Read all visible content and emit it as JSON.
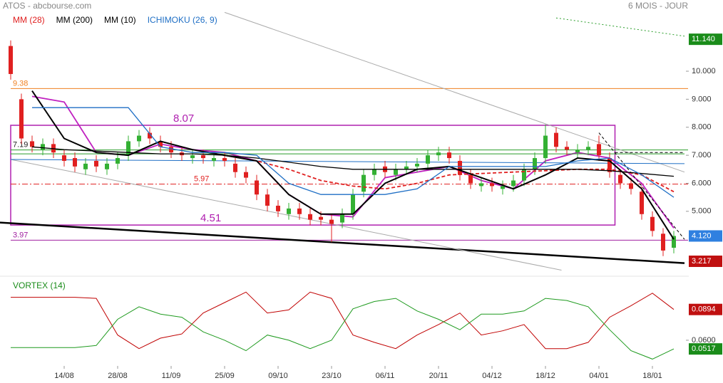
{
  "chart_data": [
    {
      "type": "candlestick",
      "title": "ATOS - abcbourse.com",
      "subtitle": "6 MOIS - JOUR",
      "x": [
        0,
        2,
        4,
        6,
        8,
        10,
        12,
        14,
        16,
        18,
        20,
        22,
        24,
        26,
        28,
        30,
        32,
        34,
        36,
        38,
        40,
        42,
        44,
        46,
        48,
        50,
        52,
        54,
        56,
        58,
        60,
        62,
        64,
        66,
        68,
        70,
        72,
        74,
        76,
        78,
        80,
        82,
        84,
        86,
        88,
        90,
        92,
        94,
        96,
        98,
        100,
        102,
        104,
        106,
        108,
        110,
        112,
        114,
        116,
        118,
        120,
        122,
        124
      ],
      "open": [
        10.9,
        9.0,
        7.5,
        7.2,
        7.4,
        7.0,
        6.9,
        6.5,
        6.8,
        6.5,
        6.7,
        7.0,
        7.5,
        7.8,
        7.5,
        7.3,
        7.1,
        6.9,
        7.0,
        6.8,
        6.9,
        6.7,
        6.4,
        6.1,
        5.6,
        5.2,
        4.9,
        5.1,
        4.9,
        4.8,
        4.7,
        4.6,
        4.9,
        5.7,
        6.3,
        6.6,
        6.3,
        6.5,
        6.6,
        6.7,
        7.0,
        7.1,
        6.8,
        6.3,
        5.9,
        6.0,
        5.8,
        5.9,
        6.1,
        6.5,
        6.9,
        7.8,
        7.3,
        7.1,
        7.2,
        7.4,
        6.9,
        6.3,
        6.0,
        5.7,
        4.8,
        4.2,
        3.7
      ],
      "high": [
        11.1,
        9.2,
        7.7,
        7.6,
        7.6,
        7.2,
        7.1,
        6.9,
        7.0,
        6.9,
        7.1,
        7.7,
        7.9,
        8.0,
        7.7,
        7.5,
        7.3,
        7.2,
        7.2,
        7.1,
        7.1,
        6.9,
        6.6,
        6.3,
        5.8,
        5.4,
        5.3,
        5.3,
        5.1,
        5.0,
        4.9,
        5.1,
        5.8,
        6.5,
        6.7,
        6.8,
        6.7,
        6.8,
        6.9,
        7.2,
        7.3,
        7.3,
        7.0,
        6.5,
        6.2,
        6.2,
        6.1,
        6.3,
        6.7,
        7.1,
        8.1,
        8.0,
        7.5,
        7.4,
        7.5,
        7.7,
        7.1,
        6.5,
        6.2,
        5.9,
        5.0,
        4.4,
        4.3
      ],
      "low": [
        9.7,
        7.4,
        7.1,
        7.0,
        6.9,
        6.6,
        6.4,
        6.3,
        6.4,
        6.3,
        6.5,
        6.8,
        7.3,
        7.4,
        7.1,
        6.9,
        6.8,
        6.7,
        6.7,
        6.6,
        6.6,
        6.2,
        6.0,
        5.4,
        5.0,
        4.8,
        4.7,
        4.7,
        4.5,
        4.5,
        3.9,
        4.4,
        4.7,
        5.5,
        6.1,
        6.2,
        6.1,
        6.3,
        6.4,
        6.5,
        6.8,
        6.7,
        6.1,
        5.8,
        5.7,
        5.7,
        5.6,
        5.7,
        5.9,
        6.3,
        6.7,
        7.1,
        7.0,
        6.9,
        7.0,
        6.8,
        6.2,
        5.8,
        5.6,
        4.7,
        4.1,
        3.4,
        3.5
      ],
      "close": [
        9.9,
        7.6,
        7.3,
        7.4,
        7.1,
        6.8,
        6.6,
        6.7,
        6.6,
        6.7,
        6.9,
        7.5,
        7.7,
        7.6,
        7.3,
        7.1,
        7.0,
        7.0,
        6.9,
        6.9,
        6.8,
        6.4,
        6.2,
        5.6,
        5.2,
        5.0,
        5.1,
        4.9,
        4.7,
        4.7,
        4.55,
        4.9,
        5.6,
        6.3,
        6.5,
        6.4,
        6.5,
        6.6,
        6.7,
        7.0,
        7.1,
        6.9,
        6.3,
        6.0,
        6.0,
        5.9,
        5.9,
        6.1,
        6.5,
        6.9,
        7.7,
        7.3,
        7.2,
        7.2,
        7.3,
        7.0,
        6.4,
        6.0,
        5.8,
        4.9,
        4.3,
        3.6,
        4.12
      ],
      "up_color": "#33b033",
      "down_color": "#e02020",
      "xlim": [
        0,
        126
      ],
      "xticks": [
        {
          "value": 10,
          "label": "14/08"
        },
        {
          "value": 20,
          "label": "28/08"
        },
        {
          "value": 30,
          "label": "11/09"
        },
        {
          "value": 40,
          "label": "25/09"
        },
        {
          "value": 50,
          "label": "09/10"
        },
        {
          "value": 60,
          "label": "23/10"
        },
        {
          "value": 70,
          "label": "06/11"
        },
        {
          "value": 80,
          "label": "20/11"
        },
        {
          "value": 90,
          "label": "04/12"
        },
        {
          "value": 100,
          "label": "18/12"
        },
        {
          "value": 110,
          "label": "04/01"
        },
        {
          "value": 120,
          "label": "18/01"
        }
      ],
      "ylim": [
        2.76,
        12.16
      ],
      "yticks": [
        {
          "value": 5,
          "label": "5.000"
        },
        {
          "value": 6,
          "label": "6.000"
        },
        {
          "value": 7,
          "label": "7.000"
        },
        {
          "value": 8,
          "label": "8.000"
        },
        {
          "value": 9,
          "label": "9.000"
        },
        {
          "value": 10,
          "label": "10.000"
        }
      ],
      "series": [
        {
          "name": "MM (28)",
          "color": "#e02020",
          "dash": true,
          "x": [
            4,
            10,
            16,
            22,
            28,
            34,
            40,
            46,
            52,
            58,
            64,
            70,
            76,
            82,
            88,
            94,
            100,
            106,
            112,
            118,
            124
          ],
          "values": [
            null,
            null,
            null,
            null,
            null,
            null,
            7.0,
            6.8,
            6.5,
            6.1,
            5.9,
            5.8,
            6.0,
            6.3,
            6.35,
            6.4,
            6.45,
            6.5,
            6.5,
            6.3,
            5.7
          ]
        },
        {
          "name": "MM (200)",
          "color": "#000000",
          "dash": false,
          "x": [
            4,
            10,
            16,
            22,
            28,
            34,
            40,
            46,
            52,
            58,
            64,
            70,
            76,
            82,
            88,
            94,
            100,
            106,
            112,
            118,
            124
          ],
          "values": [
            7.3,
            7.2,
            7.15,
            7.1,
            7.05,
            7.05,
            7.0,
            6.9,
            6.75,
            6.6,
            6.5,
            6.5,
            6.5,
            6.5,
            6.5,
            6.5,
            6.5,
            6.5,
            6.45,
            6.35,
            6.25
          ]
        },
        {
          "name": "MM (10)",
          "color": "#000000",
          "dash": false,
          "x": [
            4,
            10,
            16,
            22,
            28,
            34,
            40,
            46,
            52,
            58,
            64,
            70,
            76,
            82,
            88,
            94,
            100,
            106,
            112,
            118,
            124
          ],
          "values": [
            9.3,
            7.6,
            7.1,
            7.0,
            7.5,
            7.2,
            7.0,
            6.8,
            5.6,
            4.9,
            4.9,
            6.0,
            6.5,
            6.6,
            6.2,
            5.8,
            6.3,
            6.9,
            6.8,
            5.8,
            4.0
          ]
        },
        {
          "name": "ICHIMOKU (26, 9)",
          "color": "#1f6fc5",
          "dash": false,
          "x": [
            4,
            10,
            16,
            22,
            28,
            34,
            40,
            46,
            52,
            58,
            64,
            70,
            76,
            82,
            88,
            94,
            100,
            106,
            112,
            118,
            124
          ],
          "values": [
            8.7,
            8.7,
            8.7,
            8.7,
            7.3,
            7.1,
            7.1,
            7.0,
            6.0,
            5.6,
            5.6,
            5.6,
            5.8,
            6.6,
            6.6,
            6.6,
            6.6,
            6.8,
            6.9,
            6.3,
            5.5
          ]
        }
      ],
      "overlays": [
        {
          "color": "#c020c0",
          "x": [
            4,
            10,
            16,
            22,
            28,
            34,
            40,
            46,
            52,
            58,
            64,
            70,
            76,
            82,
            88,
            94,
            100,
            106,
            112,
            118,
            124
          ],
          "values": [
            9.1,
            8.9,
            7.1,
            7.0,
            7.4,
            7.2,
            7.1,
            6.8,
            5.6,
            4.9,
            4.8,
            6.2,
            6.4,
            6.6,
            6.1,
            5.8,
            6.8,
            7.1,
            6.9,
            6.0,
            4.4
          ]
        },
        {
          "color": "#000000",
          "x": [
            -2,
            126
          ],
          "values": [
            4.6,
            3.15
          ]
        },
        {
          "color": "#aaaaaa",
          "x": [
            40,
            126
          ],
          "values": [
            12.1,
            6.4
          ]
        },
        {
          "color": "#aaaaaa",
          "x": [
            0,
            103
          ],
          "values": [
            6.85,
            2.9
          ]
        },
        {
          "color": "#1f6fc5",
          "x": [
            0,
            126
          ],
          "values": [
            6.85,
            6.7
          ]
        },
        {
          "color": "#2a9d2a",
          "x": [
            0,
            126
          ],
          "values": [
            7.05,
            7.05
          ]
        },
        {
          "color": "#000000",
          "x": [
            110,
            126
          ],
          "values": [
            7.8,
            4.0
          ]
        },
        {
          "color": "#000000",
          "x": [
            113,
            126
          ],
          "values": [
            7.1,
            7.1
          ]
        },
        {
          "color": "#2a9d2a",
          "x": [
            102,
            126
          ],
          "values": [
            11.9,
            11.25
          ]
        }
      ],
      "levels": [
        {
          "value": 9.38,
          "label": "9.38",
          "color": "#f08020"
        },
        {
          "value": 7.19,
          "label": "7.19",
          "color": "#2a9d2a"
        },
        {
          "value": 5.97,
          "label": "5.97",
          "color": "#e02020"
        },
        {
          "value": 3.97,
          "label": "3.97",
          "color": "#a020a0"
        }
      ],
      "zone": {
        "color": "#b020b0",
        "x": [
          0,
          113
        ],
        "values": [
          8.07,
          4.51
        ],
        "labels": [
          "8.07",
          "4.51"
        ]
      },
      "price_tags": [
        {
          "value": 11.14,
          "label": "11.140",
          "color": "#1a8c1a"
        },
        {
          "value": 4.12,
          "label": "4.120",
          "color": "#2f80e0"
        },
        {
          "value": 3.217,
          "label": "3.217",
          "color": "#c01010"
        }
      ]
    },
    {
      "type": "line",
      "title": "VORTEX (14)",
      "x": [
        0,
        4,
        8,
        12,
        16,
        20,
        24,
        28,
        32,
        36,
        40,
        44,
        48,
        52,
        56,
        60,
        64,
        68,
        72,
        76,
        80,
        84,
        88,
        92,
        96,
        100,
        104,
        108,
        112,
        116,
        120,
        124
      ],
      "ylim": [
        0.028,
        0.113
      ],
      "yticks": [
        {
          "value": 0.06,
          "label": "0.0600"
        }
      ],
      "series": [
        {
          "color": "#c00000",
          "values": [
            0.101,
            0.101,
            0.101,
            0.101,
            0.1,
            0.065,
            0.052,
            0.062,
            0.066,
            0.086,
            0.096,
            0.106,
            0.086,
            0.089,
            0.106,
            0.1,
            0.065,
            0.058,
            0.052,
            0.065,
            0.075,
            0.086,
            0.065,
            0.069,
            0.075,
            0.052,
            0.052,
            0.058,
            0.082,
            0.093,
            0.105,
            0.0894
          ]
        },
        {
          "color": "#1e9a1e",
          "values": [
            0.053,
            0.053,
            0.053,
            0.053,
            0.055,
            0.08,
            0.092,
            0.085,
            0.082,
            0.068,
            0.06,
            0.05,
            0.065,
            0.06,
            0.052,
            0.06,
            0.09,
            0.097,
            0.1,
            0.088,
            0.08,
            0.07,
            0.085,
            0.085,
            0.088,
            0.1,
            0.098,
            0.092,
            0.07,
            0.05,
            0.042,
            0.0517
          ]
        }
      ],
      "price_tags": [
        {
          "value": 0.0894,
          "label": "0.0894",
          "color": "#c01010"
        },
        {
          "value": 0.0517,
          "label": "0.0517",
          "color": "#1a8c1a"
        }
      ]
    }
  ]
}
